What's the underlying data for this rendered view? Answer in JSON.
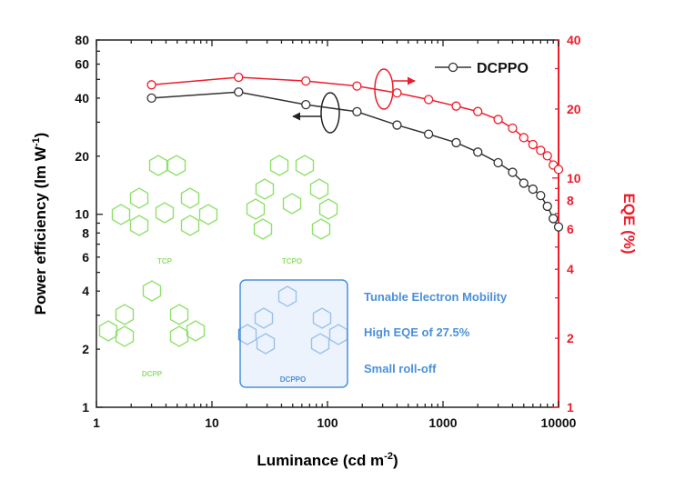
{
  "chart_data": {
    "type": "scatter",
    "xlabel": "Luminance (cd m",
    "xlabel_sup": "-2",
    "xlabel_end": ")",
    "ylabel_left": "Power efficiency (lm W",
    "ylabel_left_sup": "-1",
    "ylabel_left_end": ")",
    "ylabel_right": "EQE (%)",
    "x_scale": "log",
    "y_left_scale": "log",
    "y_right_scale": "log",
    "xlim": [
      1,
      10000
    ],
    "ylim_left": [
      1,
      80
    ],
    "ylim_right": [
      1,
      40
    ],
    "x_ticks": [
      "1",
      "10",
      "100",
      "1000",
      "10000"
    ],
    "y_left_ticks": [
      "1",
      "2",
      "4",
      "6",
      "8",
      "10",
      "20",
      "40",
      "60",
      "80"
    ],
    "y_right_ticks": [
      "1",
      "2",
      "4",
      "6",
      "8",
      "10",
      "20",
      "40"
    ],
    "legend": {
      "label": "DCPPO",
      "position": "top-right"
    },
    "colors": {
      "power_efficiency": "#333333",
      "eqe": "#ee1c2a",
      "molecules": "#8fe06a",
      "highlight": "#4a90d9"
    },
    "series": [
      {
        "name": "DCPPO",
        "axis": "left",
        "x": [
          3,
          17,
          65,
          180,
          400,
          750,
          1300,
          2000,
          3000,
          4000,
          5000,
          6000,
          7000,
          8000,
          9000,
          10000
        ],
        "y": [
          40,
          43,
          37,
          34,
          29,
          26,
          23.5,
          21,
          18.5,
          16.5,
          14.5,
          13.5,
          12.5,
          11,
          9.5,
          8.6
        ]
      },
      {
        "name": "",
        "axis": "right",
        "x": [
          3,
          17,
          65,
          180,
          400,
          750,
          1300,
          2000,
          3000,
          4000,
          5000,
          6000,
          7000,
          8000,
          9000,
          10000
        ],
        "y": [
          25.5,
          27.5,
          26.5,
          25.2,
          23.5,
          22,
          20.6,
          19.5,
          18,
          16.5,
          15,
          14,
          13.2,
          12.5,
          11.4,
          10.9
        ]
      }
    ],
    "annotations": {
      "molecules": [
        "TCP",
        "TCPO",
        "DCPP",
        "DCPPO"
      ],
      "features": [
        "Tunable Electron Mobility",
        "High EQE of 27.5%",
        "Small roll-off"
      ]
    }
  }
}
